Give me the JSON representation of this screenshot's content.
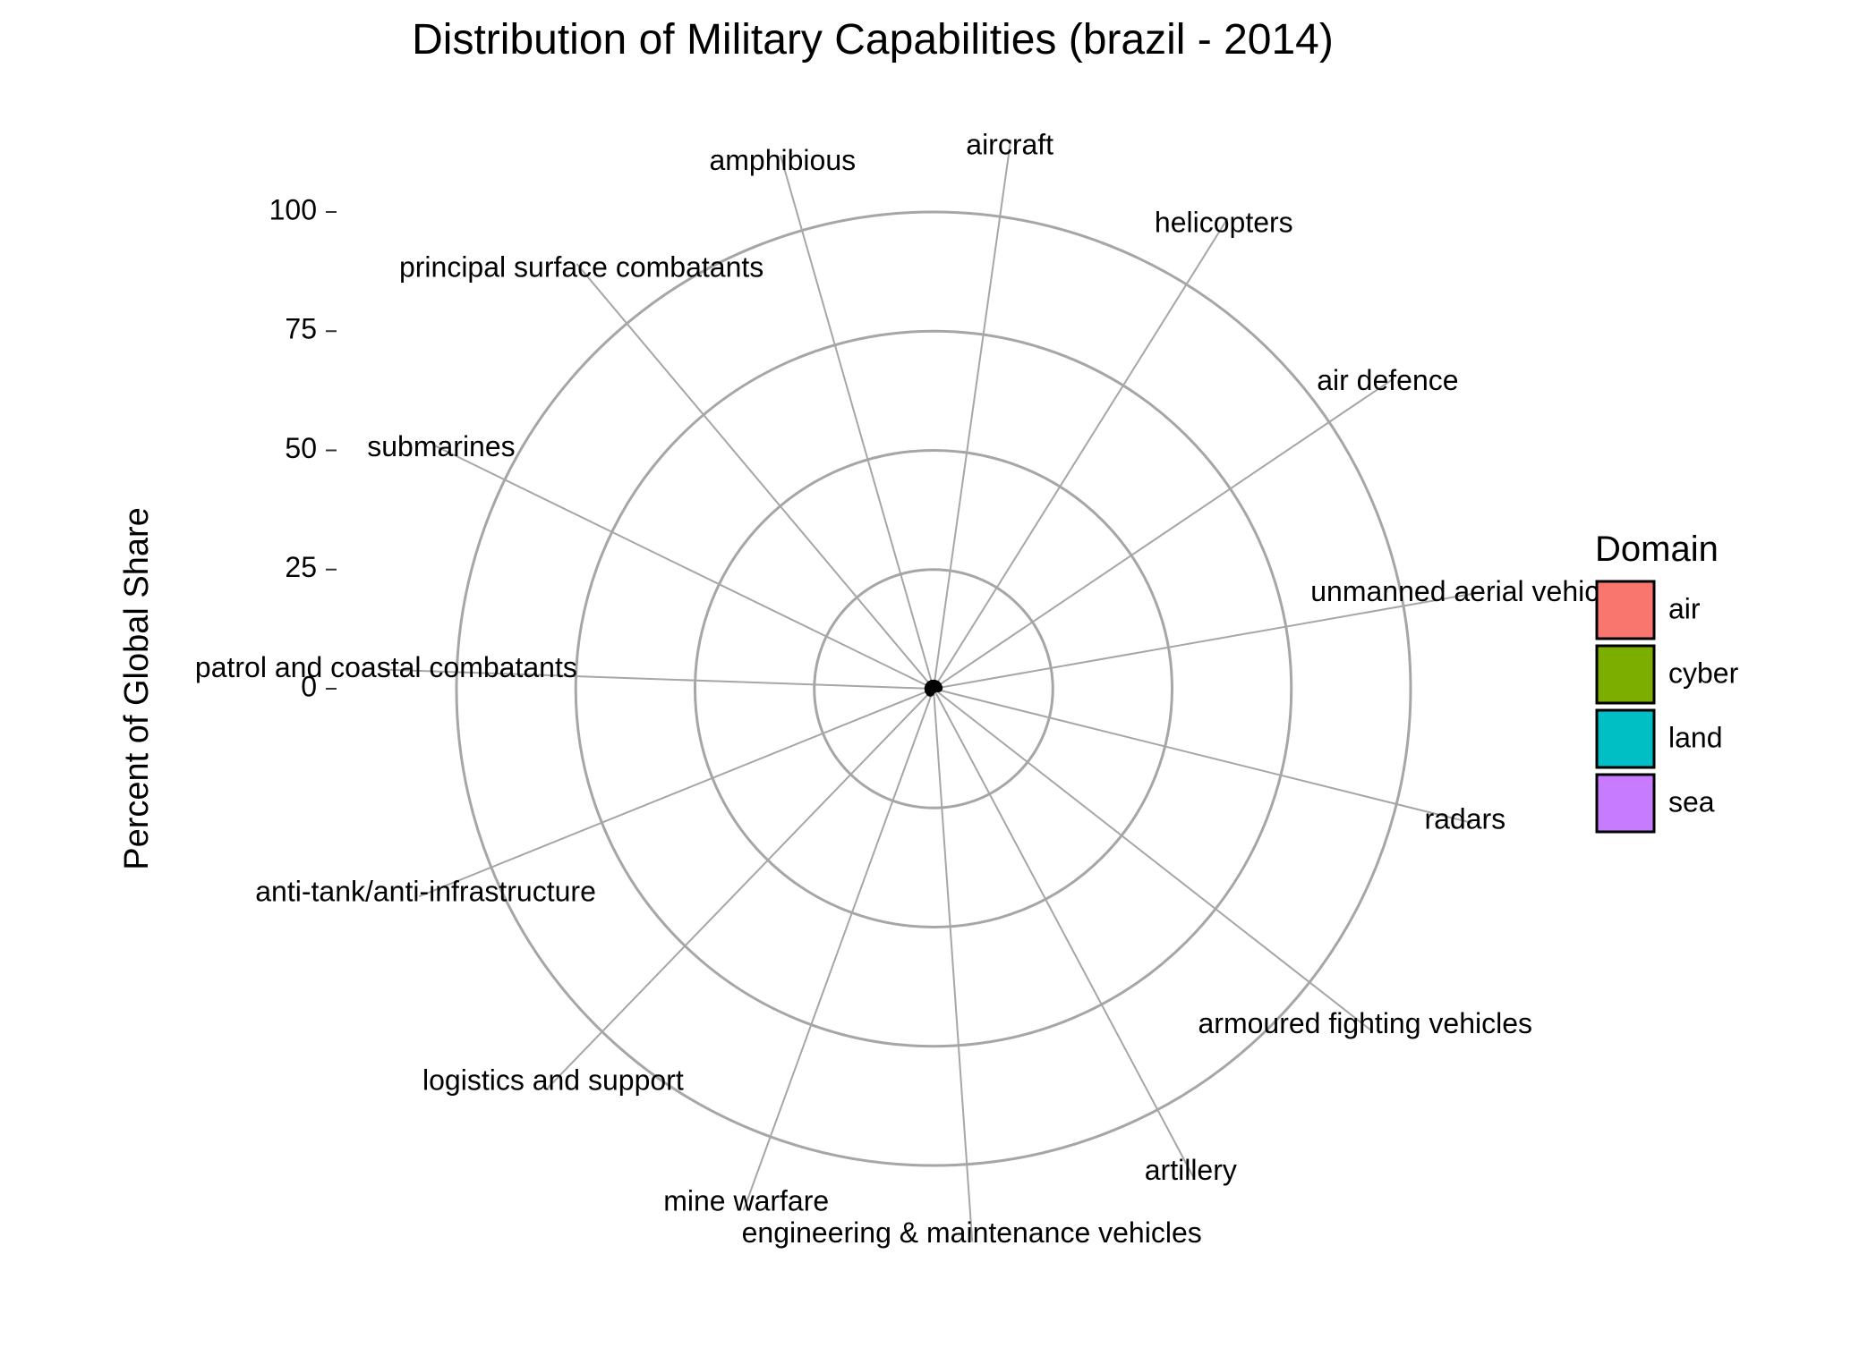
{
  "chart_data": {
    "type": "radar",
    "title": "Distribution of Military Capabilities (brazil - 2014)",
    "ylabel": "Percent of Global Share",
    "ylim": [
      0,
      100
    ],
    "y_ticks": [
      0,
      25,
      50,
      75,
      100
    ],
    "grid": true,
    "legend": {
      "title": "Domain",
      "position": "right",
      "entries": [
        {
          "name": "air",
          "color": "#F8766D"
        },
        {
          "name": "cyber",
          "color": "#7CAE00"
        },
        {
          "name": "land",
          "color": "#00BFC4"
        },
        {
          "name": "sea",
          "color": "#C77CFF"
        }
      ]
    },
    "categories": [
      "aircraft",
      "helicopters",
      "air defence",
      "unmanned aerial vehicles",
      "radars",
      "armoured fighting vehicles",
      "artillery",
      "engineering & maintenance vehicles",
      "mine warfare",
      "logistics and support",
      "anti-tank/anti-infrastructure",
      "patrol and coastal combatants",
      "submarines",
      "principal surface combatants",
      "amphibious"
    ],
    "values": [
      1,
      1,
      1,
      1,
      0,
      0,
      0,
      0,
      0,
      1,
      1,
      1,
      1,
      1,
      1
    ]
  },
  "colors": {
    "grid_circle": "#A6A6A6",
    "spoke": "#A6A6A6",
    "data_line": "#000000"
  }
}
